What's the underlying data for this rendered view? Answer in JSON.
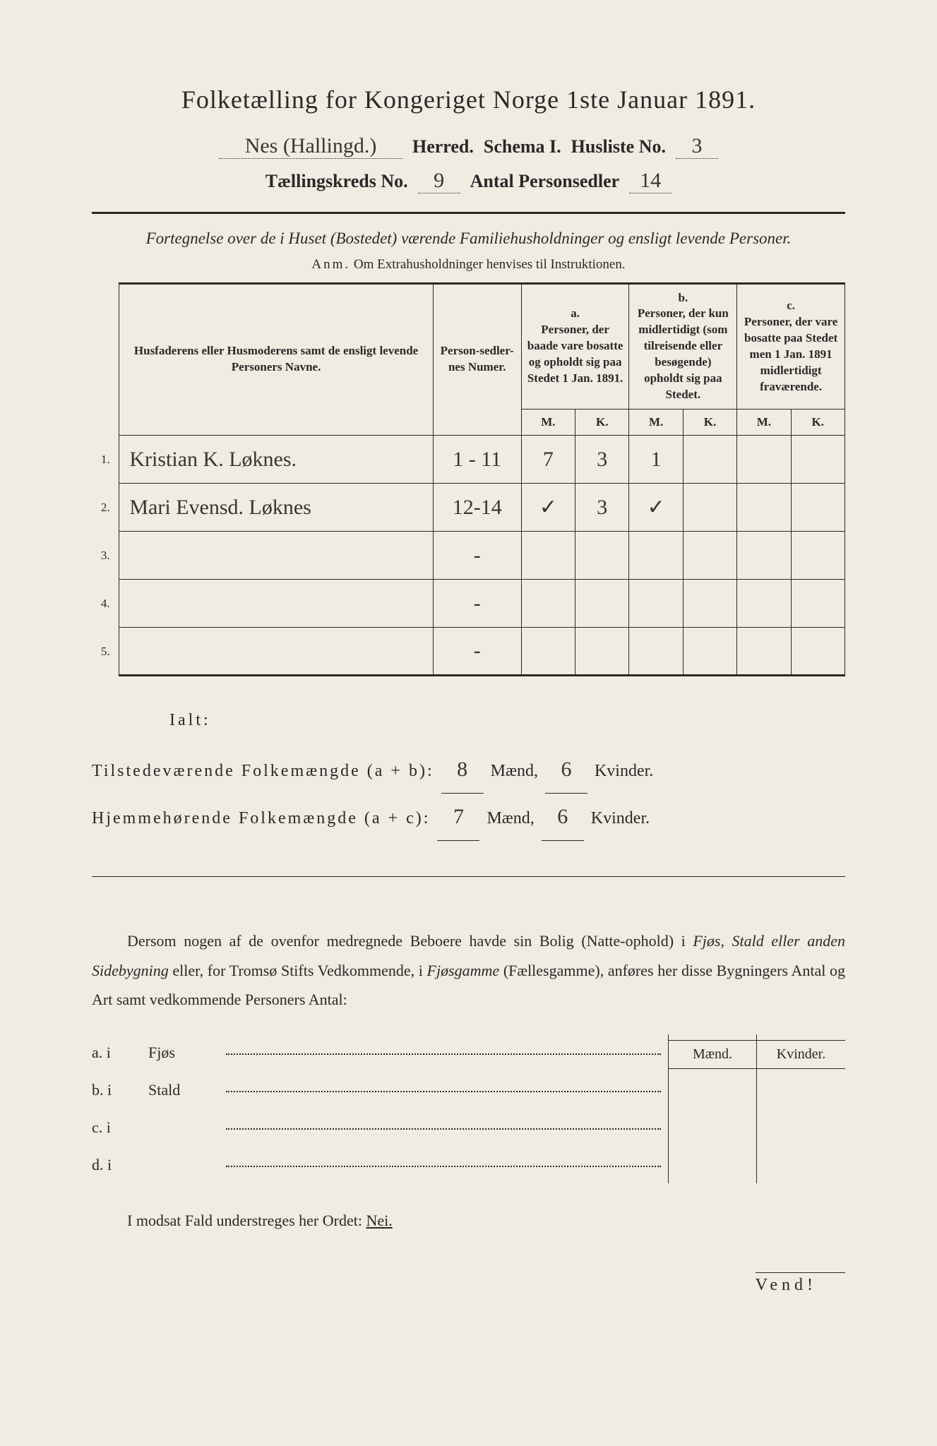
{
  "colors": {
    "paper_bg": "#f0ece2",
    "ink": "#2a2828",
    "handwriting": "#3a352c"
  },
  "typography": {
    "title_fontsize": 36,
    "header_fontsize": 26,
    "body_fontsize": 22,
    "table_fontsize": 17,
    "hand_fontfamily": "Brush Script MT"
  },
  "title": "Folketælling for Kongeriget Norge 1ste Januar 1891.",
  "header": {
    "herred_value": "Nes (Hallingd.)",
    "herred_label": "Herred.",
    "schema_label": "Schema I.",
    "husliste_label": "Husliste No.",
    "husliste_value": "3",
    "kreds_label": "Tællingskreds No.",
    "kreds_value": "9",
    "antal_label": "Antal Personsedler",
    "antal_value": "14"
  },
  "subtitle": "Fortegnelse over de i Huset (Bostedet) værende Familiehusholdninger og ensligt levende Personer.",
  "anm_label": "Anm.",
  "anm_text": "Om Extrahusholdninger henvises til Instruktionen.",
  "table": {
    "col_name": "Husfaderens eller Husmoderens samt de ensligt levende Personers Navne.",
    "col_numer": "Person-sedler-nes Numer.",
    "col_a_label": "a.",
    "col_a": "Personer, der baade vare bosatte og opholdt sig paa Stedet 1 Jan. 1891.",
    "col_b_label": "b.",
    "col_b": "Personer, der kun midlertidigt (som tilreisende eller besøgende) opholdt sig paa Stedet.",
    "col_c_label": "c.",
    "col_c": "Personer, der vare bosatte paa Stedet men 1 Jan. 1891 midlertidigt fraværende.",
    "M": "M.",
    "K": "K.",
    "rows": [
      {
        "n": "1.",
        "name": "Kristian K. Løknes.",
        "numer": "1 - 11",
        "aM": "7",
        "aK": "3",
        "bM": "1",
        "bK": "",
        "cM": "",
        "cK": ""
      },
      {
        "n": "2.",
        "name": "Mari Evensd. Løknes",
        "numer": "12-14",
        "aM": "✓",
        "aK": "3",
        "bM": "✓",
        "bK": "",
        "cM": "",
        "cK": ""
      },
      {
        "n": "3.",
        "name": "",
        "numer": "-",
        "aM": "",
        "aK": "",
        "bM": "",
        "bK": "",
        "cM": "",
        "cK": ""
      },
      {
        "n": "4.",
        "name": "",
        "numer": "-",
        "aM": "",
        "aK": "",
        "bM": "",
        "bK": "",
        "cM": "",
        "cK": ""
      },
      {
        "n": "5.",
        "name": "",
        "numer": "-",
        "aM": "",
        "aK": "",
        "bM": "",
        "bK": "",
        "cM": "",
        "cK": ""
      }
    ]
  },
  "ialt": {
    "label": "Ialt:",
    "row1_label": "Tilstedeværende Folkemængde (a + b):",
    "row1_m": "8",
    "row1_k": "6",
    "row2_label": "Hjemmehørende Folkemængde (a + c):",
    "row2_m": "7",
    "row2_k": "6",
    "maend": "Mænd,",
    "kvinder": "Kvinder."
  },
  "paragraph": {
    "t1": "Dersom nogen af de ovenfor medregnede Beboere havde sin Bolig (Natte-ophold) i ",
    "i1": "Fjøs, Stald eller anden Sidebygning",
    "t2": " eller, for Tromsø Stifts Vedkommende, i ",
    "i2": "Fjøsgamme",
    "t3": " (Fællesgamme), anføres her disse Bygningers Antal og Art samt vedkommende Personers Antal:"
  },
  "sidetable": {
    "maend": "Mænd.",
    "kvinder": "Kvinder.",
    "rows": [
      {
        "label": "a.  i",
        "type": "Fjøs"
      },
      {
        "label": "b.  i",
        "type": "Stald"
      },
      {
        "label": "c.  i",
        "type": ""
      },
      {
        "label": "d.  i",
        "type": ""
      }
    ]
  },
  "imodsat": {
    "t1": "I modsat Fald understreges her Ordet: ",
    "nei": "Nei."
  },
  "vend": "Vend!"
}
